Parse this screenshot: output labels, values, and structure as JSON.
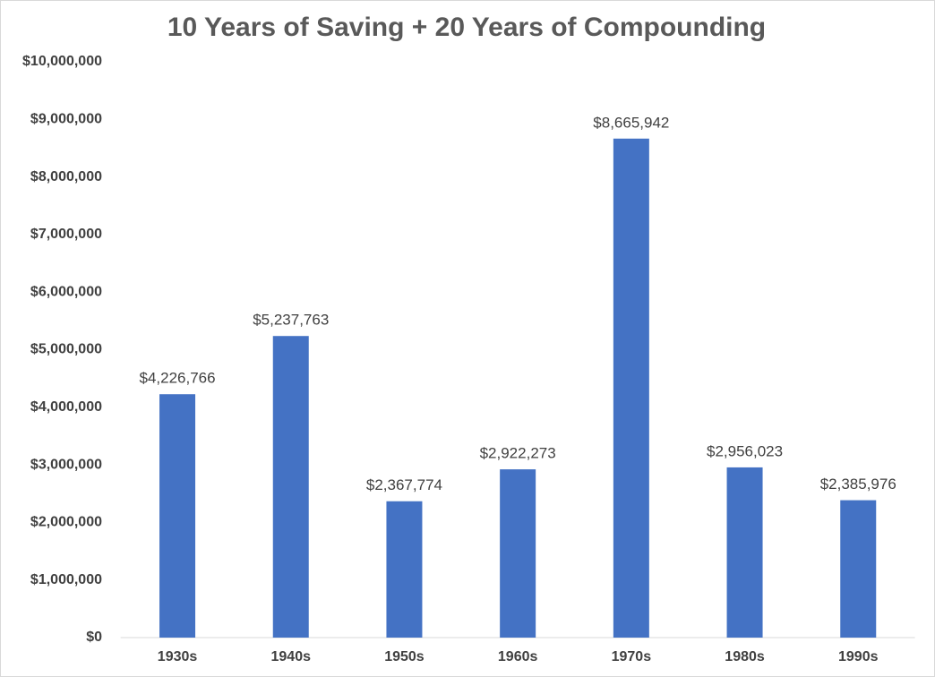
{
  "chart_data": {
    "type": "bar",
    "title": "10 Years of Saving + 20 Years of Compounding",
    "categories": [
      "1930s",
      "1940s",
      "1950s",
      "1960s",
      "1970s",
      "1980s",
      "1990s"
    ],
    "values": [
      4226766,
      5237763,
      2367774,
      2922273,
      8665942,
      2956023,
      2385976
    ],
    "value_labels": [
      "$4,226,766",
      "$5,237,763",
      "$2,367,774",
      "$2,922,273",
      "$8,665,942",
      "$2,956,023",
      "$2,385,976"
    ],
    "color": "#4472c4",
    "ylim": [
      0,
      10000000
    ],
    "yticks": [
      {
        "value": 0,
        "label": "$0"
      },
      {
        "value": 1000000,
        "label": "$1,000,000"
      },
      {
        "value": 2000000,
        "label": "$2,000,000"
      },
      {
        "value": 3000000,
        "label": "$3,000,000"
      },
      {
        "value": 4000000,
        "label": "$4,000,000"
      },
      {
        "value": 5000000,
        "label": "$5,000,000"
      },
      {
        "value": 6000000,
        "label": "$6,000,000"
      },
      {
        "value": 7000000,
        "label": "$7,000,000"
      },
      {
        "value": 8000000,
        "label": "$8,000,000"
      },
      {
        "value": 9000000,
        "label": "$9,000,000"
      },
      {
        "value": 10000000,
        "label": "$10,000,000"
      }
    ],
    "grid": false
  }
}
